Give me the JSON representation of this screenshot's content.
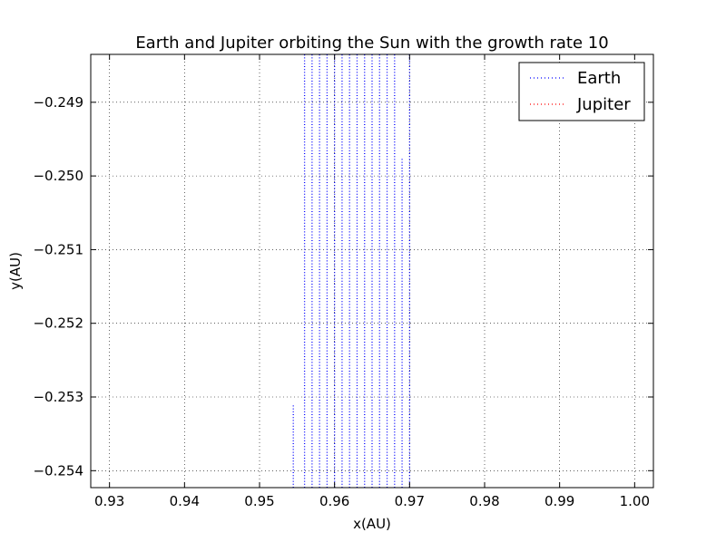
{
  "chart_data": {
    "type": "line",
    "title": "Earth and Jupiter orbiting the Sun with the growth rate 10",
    "xlabel": "x(AU)",
    "ylabel": "y(AU)",
    "xlim": [
      0.9275,
      1.0025
    ],
    "ylim": [
      -0.25423,
      -0.24835
    ],
    "x_ticks": [
      0.93,
      0.94,
      0.95,
      0.96,
      0.97,
      0.98,
      0.99,
      1.0
    ],
    "x_tick_labels": [
      "0.93",
      "0.94",
      "0.95",
      "0.96",
      "0.97",
      "0.98",
      "0.99",
      "1.00"
    ],
    "y_ticks": [
      -0.249,
      -0.25,
      -0.251,
      -0.252,
      -0.253,
      -0.254
    ],
    "y_tick_labels": [
      "−0.249",
      "−0.250",
      "−0.251",
      "−0.252",
      "−0.253",
      "−0.254"
    ],
    "grid": true,
    "legend_position": "upper right",
    "series": [
      {
        "name": "Earth",
        "color": "#0000ff",
        "line_style": "dotted",
        "x": [
          0.9545,
          0.956,
          0.957,
          0.958,
          0.959,
          0.96,
          0.961,
          0.962,
          0.963,
          0.964,
          0.965,
          0.966,
          0.967,
          0.968,
          0.969,
          0.97
        ],
        "y_bottom": [
          -0.25423,
          -0.25423,
          -0.25423,
          -0.25423,
          -0.25423,
          -0.25423,
          -0.25423,
          -0.25423,
          -0.25423,
          -0.25423,
          -0.25423,
          -0.25423,
          -0.25423,
          -0.25423,
          -0.25423,
          -0.25423
        ],
        "y_top": [
          -0.25311,
          -0.24835,
          -0.24835,
          -0.24835,
          -0.24835,
          -0.24835,
          -0.24835,
          -0.24835,
          -0.24835,
          -0.24835,
          -0.24835,
          -0.24835,
          -0.24835,
          -0.24835,
          -0.24975,
          -0.24835
        ]
      },
      {
        "name": "Jupiter",
        "color": "#ff0000",
        "line_style": "dotted",
        "x": [],
        "y_bottom": [],
        "y_top": []
      }
    ]
  }
}
